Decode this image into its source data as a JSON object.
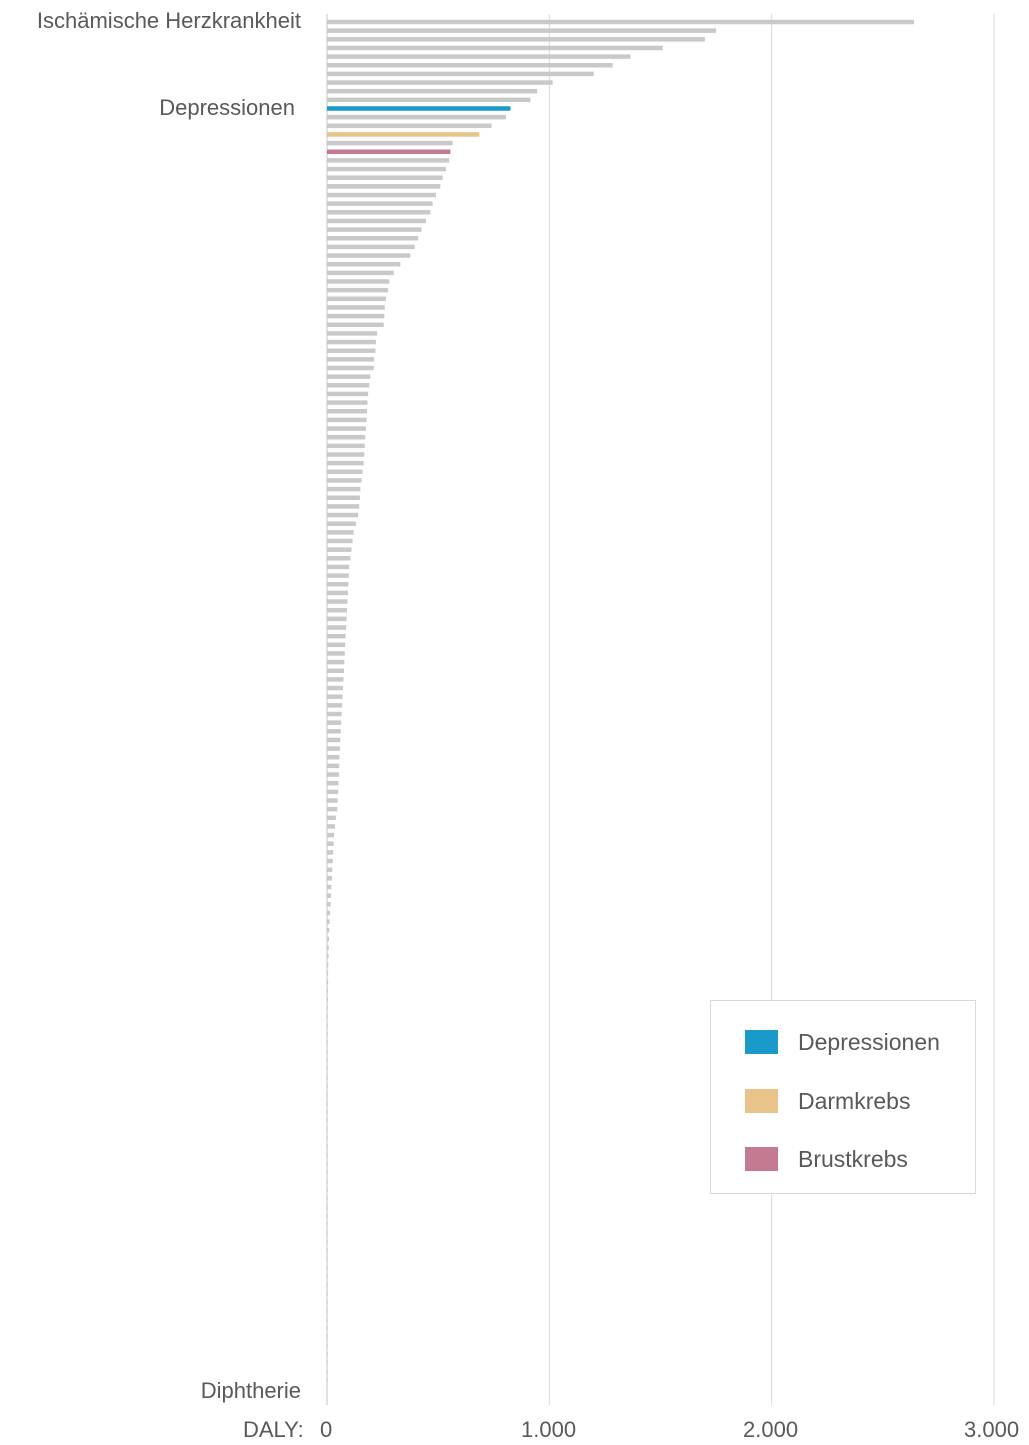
{
  "chart_data": {
    "type": "bar",
    "orientation": "horizontal",
    "xlabel": "DALY:",
    "xlim": [
      0,
      3000
    ],
    "xticks": [
      0,
      1000,
      2000,
      3000
    ],
    "xtick_labels": [
      "0",
      "1.000",
      "2.000",
      "3.000"
    ],
    "grid": true,
    "legend_position": "bottom-right",
    "category_labels": {
      "first": "Ischämische Herzkrankheit",
      "highlight": "Depressionen",
      "last": "Diphtherie"
    },
    "values": [
      2640,
      1750,
      1700,
      1510,
      1365,
      1285,
      1200,
      1015,
      945,
      915,
      825,
      805,
      740,
      685,
      565,
      555,
      550,
      535,
      520,
      510,
      490,
      475,
      465,
      445,
      425,
      410,
      395,
      375,
      330,
      300,
      280,
      275,
      265,
      260,
      258,
      255,
      225,
      220,
      218,
      212,
      210,
      195,
      190,
      185,
      182,
      180,
      178,
      175,
      172,
      170,
      168,
      165,
      160,
      155,
      150,
      148,
      145,
      140,
      130,
      120,
      115,
      110,
      105,
      100,
      98,
      96,
      94,
      92,
      90,
      88,
      86,
      84,
      82,
      80,
      78,
      76,
      74,
      72,
      70,
      68,
      66,
      64,
      62,
      60,
      58,
      56,
      55,
      54,
      52,
      50,
      48,
      46,
      40,
      36,
      32,
      30,
      28,
      26,
      24,
      22,
      20,
      18,
      16,
      14,
      12,
      10,
      9,
      8,
      7,
      6,
      5,
      5,
      4,
      4,
      3,
      3,
      3,
      2,
      2,
      2,
      2,
      1,
      1,
      1,
      1,
      1,
      1,
      1,
      1,
      1,
      1,
      1,
      1,
      1,
      1,
      1,
      1,
      1,
      1,
      1,
      1,
      1,
      1,
      1,
      1,
      1,
      1,
      1,
      1,
      1,
      1,
      1,
      1,
      1,
      1,
      1,
      1,
      1
    ],
    "highlights": [
      {
        "index": 10,
        "name": "Depressionen",
        "color": "#1a9ac9"
      },
      {
        "index": 13,
        "name": "Darmkrebs",
        "color": "#e8c48a"
      },
      {
        "index": 15,
        "name": "Brustkrebs",
        "color": "#c47a90"
      }
    ],
    "colors": {
      "default_bar": "#c9c9c9",
      "grid": "#d9d9d9"
    }
  },
  "legend": {
    "items": [
      {
        "label": "Depressionen",
        "color": "#1a9ac9"
      },
      {
        "label": "Darmkrebs",
        "color": "#e8c48a"
      },
      {
        "label": "Brustkrebs",
        "color": "#c47a90"
      }
    ]
  }
}
